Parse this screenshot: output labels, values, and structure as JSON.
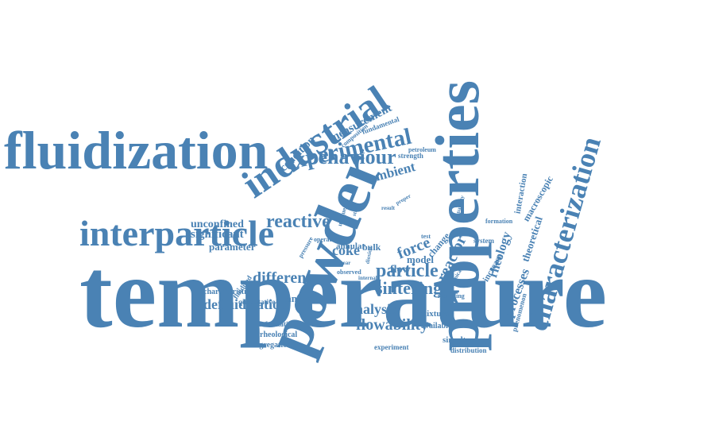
{
  "color": "#4a82b4",
  "words": [
    "temperature",
    "powder",
    "properties",
    "fluidization",
    "industrial",
    "interparticle",
    "characterization",
    "experimental",
    "behaviour",
    "reactive",
    "particle",
    "sintering",
    "defluidization",
    "different",
    "flowability",
    "analysis",
    "force",
    "reactor",
    "rheology",
    "processes",
    "theoretical",
    "macroscopic",
    "interaction",
    "ambient",
    "condition",
    "measurement",
    "unconfined",
    "significant",
    "parameter",
    "coke",
    "flow",
    "model",
    "change",
    "titanium",
    "characteristic",
    "quantitative",
    "fluidized",
    "information",
    "rheological",
    "segregation",
    "experiment",
    "simultaneous",
    "available",
    "distribution",
    "mixture",
    "increase",
    "system",
    "phenomenon",
    "fundamental",
    "composition",
    "strength",
    "petroleum",
    "formation",
    "capability",
    "bulk",
    "annular",
    "operating",
    "pressure",
    "observed",
    "internal",
    "shear",
    "modelling",
    "chemical",
    "test",
    "result",
    "proper",
    "unique",
    "study",
    "dioxide"
  ]
}
